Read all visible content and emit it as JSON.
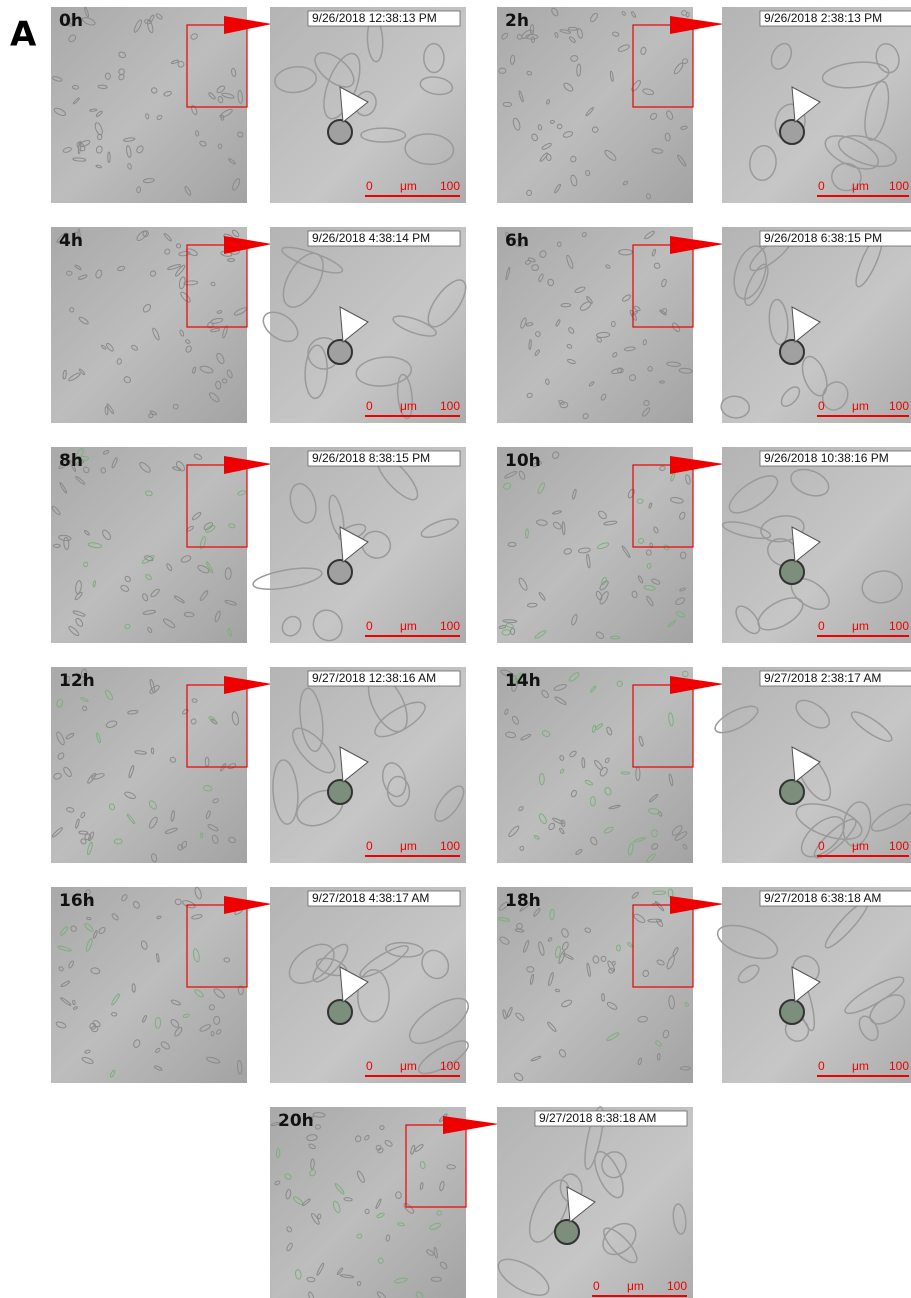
{
  "panel_label": "A",
  "scale_bar": {
    "start": "0",
    "unit": "μm",
    "end": "100"
  },
  "frames": [
    {
      "time": "0h",
      "timestamp": "9/26/2018 12:38:13 PM"
    },
    {
      "time": "2h",
      "timestamp": "9/26/2018 2:38:13 PM"
    },
    {
      "time": "4h",
      "timestamp": "9/26/2018 4:38:14 PM"
    },
    {
      "time": "6h",
      "timestamp": "9/26/2018 6:38:15 PM"
    },
    {
      "time": "8h",
      "timestamp": "9/26/2018 8:38:15 PM"
    },
    {
      "time": "10h",
      "timestamp": "9/26/2018 10:38:16 PM"
    },
    {
      "time": "12h",
      "timestamp": "9/27/2018 12:38:16 AM"
    },
    {
      "time": "14h",
      "timestamp": "9/27/2018 2:38:17 AM"
    },
    {
      "time": "16h",
      "timestamp": "9/27/2018 4:38:17 AM"
    },
    {
      "time": "18h",
      "timestamp": "9/27/2018 6:38:18 AM"
    },
    {
      "time": "20h",
      "timestamp": "9/27/2018 8:38:18 AM"
    }
  ]
}
